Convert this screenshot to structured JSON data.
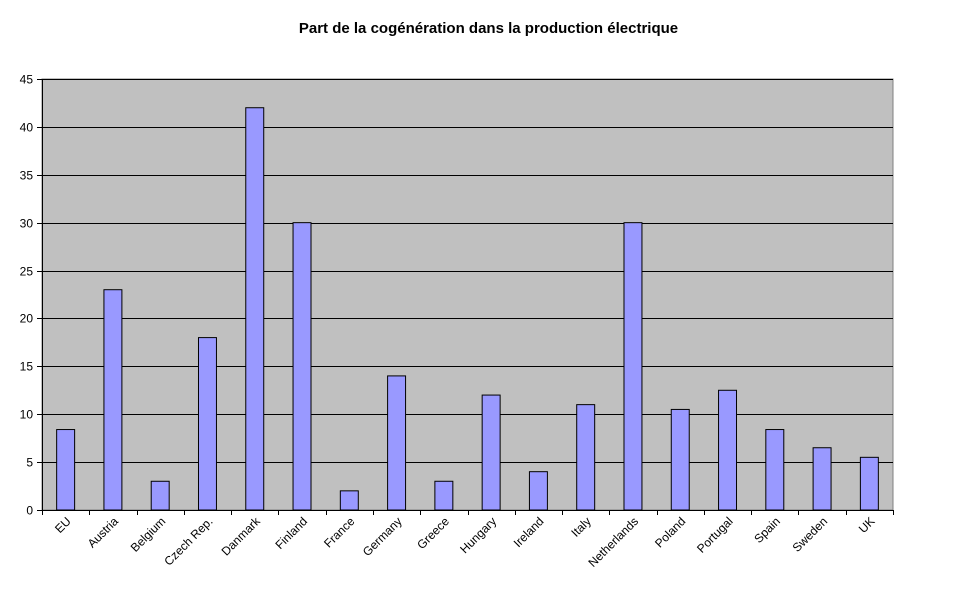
{
  "chart_data": {
    "type": "bar",
    "title": "Part de la cogénération dans la production électrique",
    "categories": [
      "EU",
      "Austria",
      "Belgium",
      "Czech Rep.",
      "Danmark",
      "Finland",
      "France",
      "Germany",
      "Greece",
      "Hungary",
      "Ireland",
      "Italy",
      "Netherlands",
      "Poland",
      "Portugal",
      "Spain",
      "Sweden",
      "UK"
    ],
    "values": [
      8.4,
      23,
      3,
      18,
      42,
      30,
      2,
      14,
      3,
      12,
      4,
      11,
      30,
      10.5,
      12.5,
      8.4,
      6.5,
      5.5
    ],
    "xlabel": "",
    "ylabel": "",
    "ylim": [
      0,
      45
    ],
    "yticks": [
      "0",
      "5",
      "10",
      "15",
      "20",
      "25",
      "30",
      "35",
      "40",
      "45"
    ],
    "grid": true,
    "legend": "none",
    "colors": {
      "plot_background": "#C0C0C0",
      "bar_fill": "#9999FF",
      "bar_stroke": "#000000",
      "gridline": "#000000"
    }
  }
}
